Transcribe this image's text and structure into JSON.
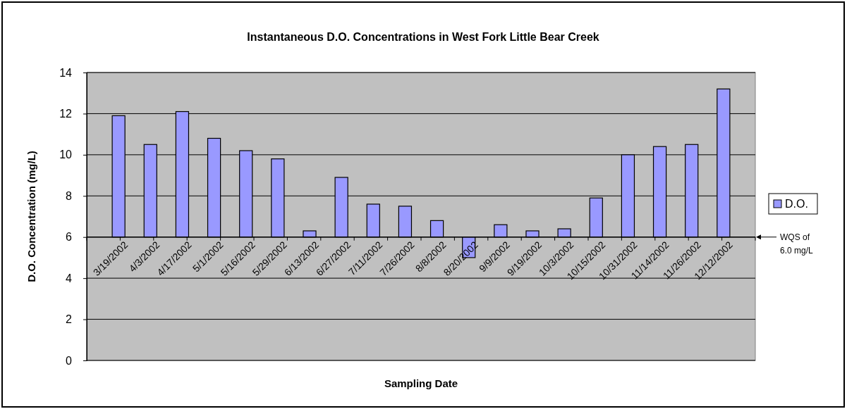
{
  "chart_data": {
    "type": "bar",
    "title": "Instantaneous D.O. Concentrations in West Fork Little Bear Creek",
    "xlabel": "Sampling Date",
    "ylabel": "D.O. Concentration (mg/L)",
    "categories": [
      "3/19/2002",
      "4/3/2002",
      "4/17/2002",
      "5/1/2002",
      "5/16/2002",
      "5/29/2002",
      "6/13/2002",
      "6/27/2002",
      "7/11/2002",
      "7/26/2002",
      "8/8/2002",
      "8/20/2002",
      "9/9/2002",
      "9/19/2002",
      "10/3/2002",
      "10/15/2002",
      "10/31/2002",
      "11/14/2002",
      "11/26/2002",
      "12/12/2002"
    ],
    "series": [
      {
        "name": "D.O.",
        "color": "#9999ff",
        "base": [
          6,
          6,
          6,
          6,
          6,
          6,
          6,
          6,
          6,
          6,
          6,
          6,
          6,
          6,
          6,
          6,
          6,
          6,
          6,
          6
        ],
        "values": [
          5.9,
          4.5,
          6.1,
          4.8,
          4.2,
          3.8,
          0.3,
          2.9,
          1.6,
          1.5,
          0.8,
          -1.0,
          0.6,
          0.3,
          0.4,
          1.9,
          4.0,
          4.4,
          4.5,
          7.2
        ]
      }
    ],
    "ylim": [
      0,
      14
    ],
    "yticks": [
      0,
      2,
      4,
      6,
      8,
      10,
      12,
      14
    ],
    "grid": "y",
    "legend": "right",
    "annotations": [
      "WQS of 6.0 mg/L"
    ]
  }
}
